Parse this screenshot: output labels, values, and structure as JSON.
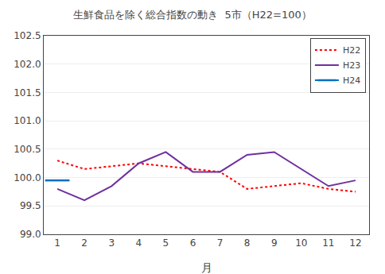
{
  "chart_data": {
    "type": "line",
    "title": "生鮮食品を除く総合指数の動き  5市（H22=100）",
    "xlabel": "月",
    "x": [
      1,
      2,
      3,
      4,
      5,
      6,
      7,
      8,
      9,
      10,
      11,
      12
    ],
    "xlim": [
      0.5,
      12.5
    ],
    "xticks": [
      1,
      2,
      3,
      4,
      5,
      6,
      7,
      8,
      9,
      10,
      11,
      12
    ],
    "ylim": [
      99.0,
      102.5
    ],
    "yticks": [
      {
        "value": 99.0,
        "label": "99.0"
      },
      99.5,
      {
        "value": 100.0,
        "label": "100.0"
      },
      100.5,
      {
        "value": 101.0,
        "label": "101.0"
      },
      101.5,
      {
        "value": 102.0,
        "label": "102.0"
      },
      102.5
    ],
    "grid": "y",
    "legend": "upper right",
    "series": [
      {
        "name": "H22",
        "color": "#ff0000",
        "line_style": "dotted",
        "values": [
          100.3,
          100.15,
          100.2,
          100.25,
          100.2,
          100.15,
          100.1,
          99.8,
          99.85,
          99.9,
          99.8,
          99.75
        ]
      },
      {
        "name": "H23",
        "color": "#7030a0",
        "line_style": "solid",
        "values": [
          99.8,
          99.6,
          99.85,
          100.25,
          100.45,
          100.1,
          100.1,
          100.4,
          100.45,
          100.15,
          99.85,
          99.95
        ]
      },
      {
        "name": "H24",
        "color": "#0070c0",
        "line_style": "solid",
        "marker": "line-ew",
        "values": [
          99.95,
          null,
          null,
          null,
          null,
          null,
          null,
          null,
          null,
          null,
          null,
          null
        ]
      }
    ]
  }
}
